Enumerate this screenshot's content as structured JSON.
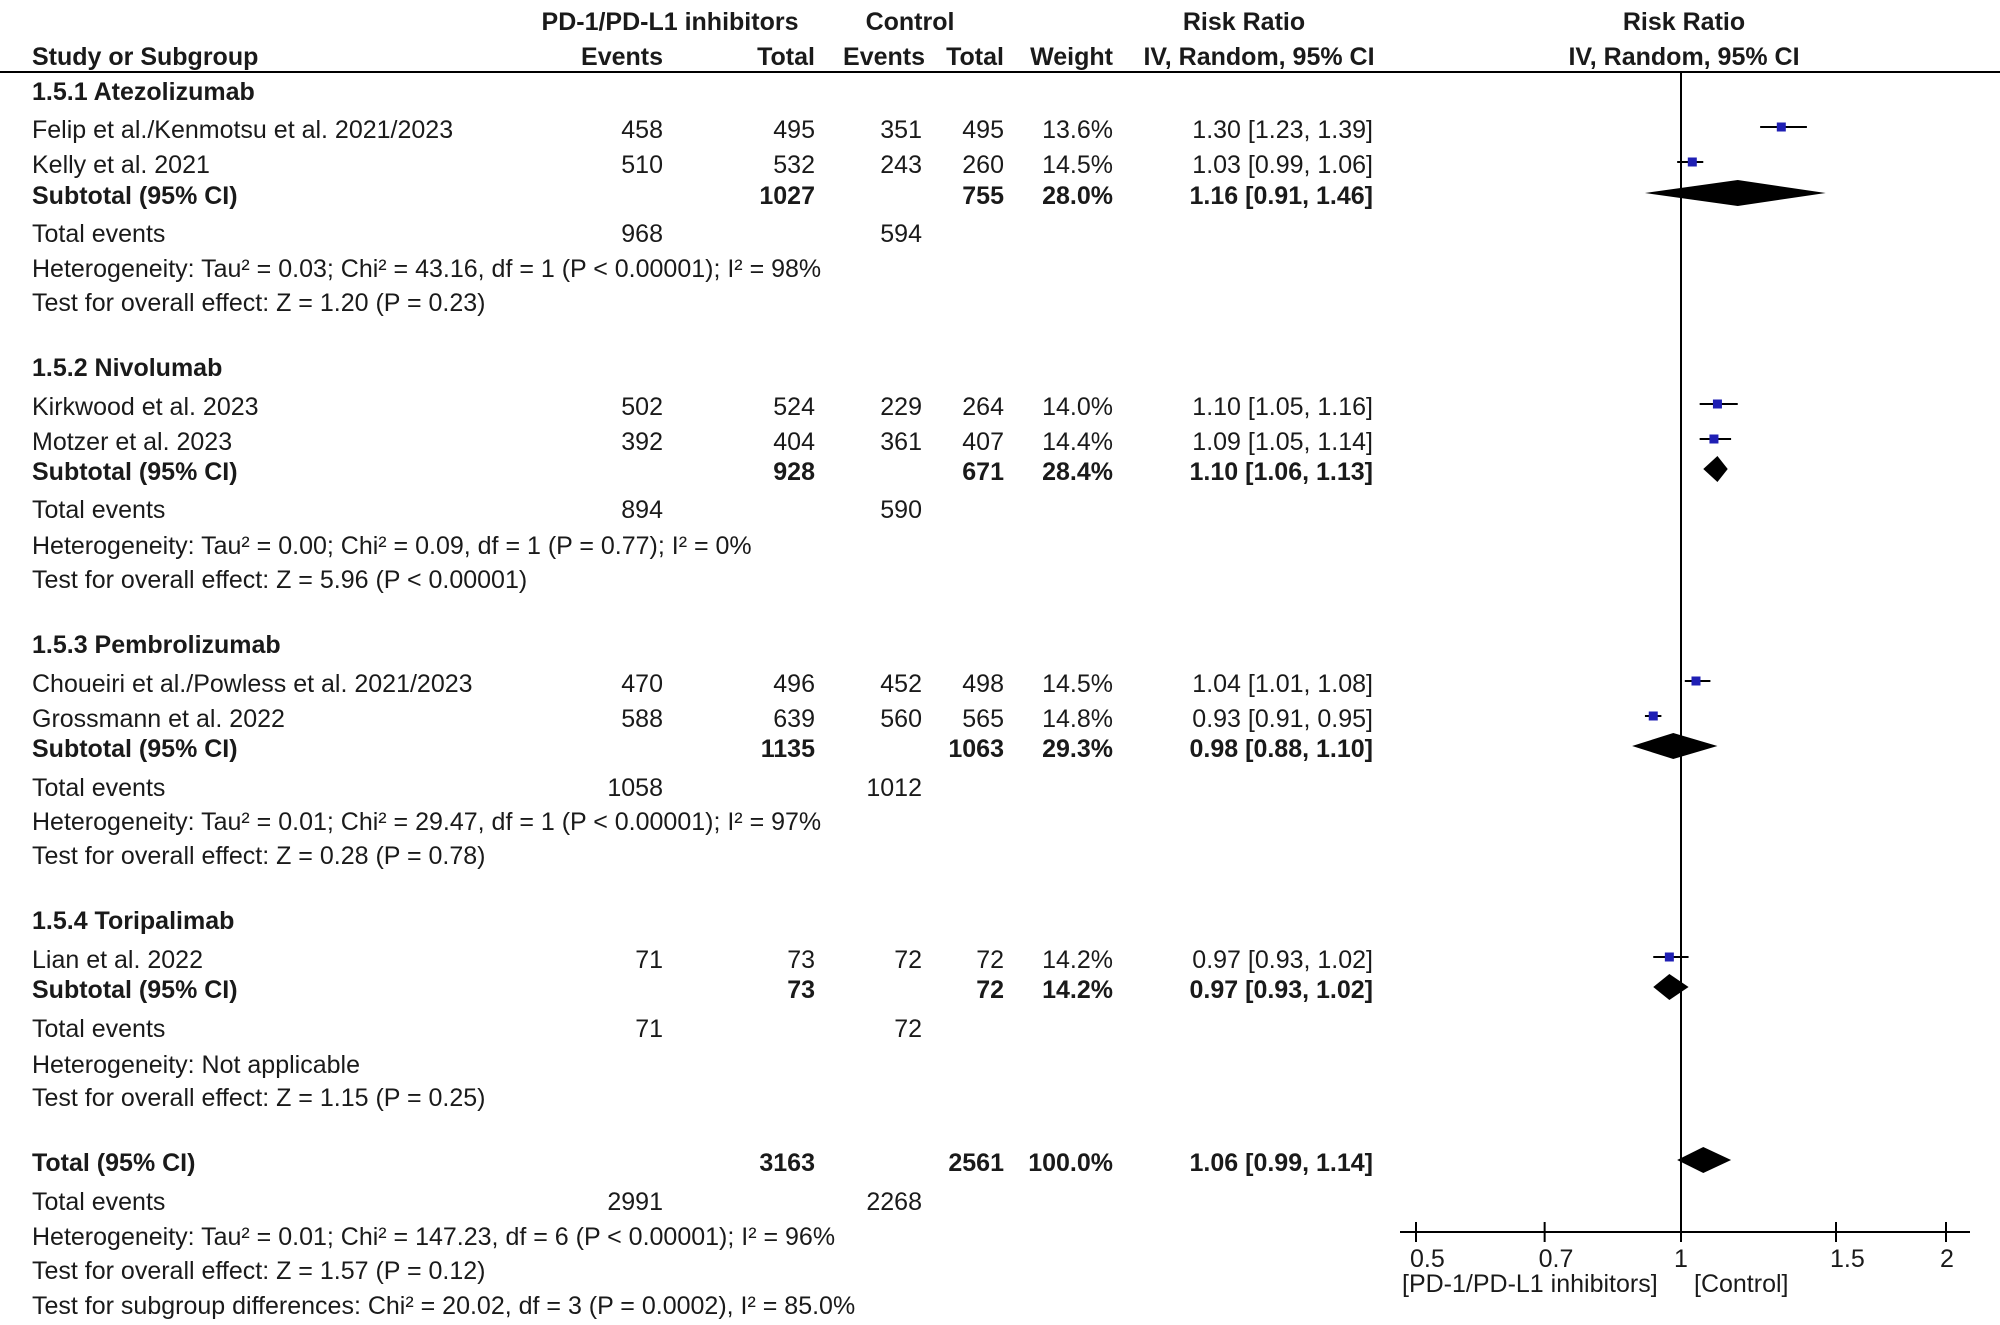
{
  "header": {
    "group_exp": "PD-1/PD-L1 inhibitors",
    "group_ctrl": "Control",
    "rr_title": "Risk Ratio",
    "rr_plot_title": "Risk Ratio",
    "study_col": "Study or Subgroup",
    "events_exp": "Events",
    "total_exp": "Total",
    "events_ctrl": "Events",
    "total_ctrl": "Total",
    "weight": "Weight",
    "rr_method": "IV, Random, 95% CI",
    "rr_plot_method": "IV, Random, 95% CI"
  },
  "subgroups": [
    {
      "title": "1.5.1 Atezolizumab",
      "studies": [
        {
          "name": "Felip et al./Kenmotsu et al. 2021/2023",
          "e_exp": "458",
          "t_exp": "495",
          "e_ctrl": "351",
          "t_ctrl": "495",
          "weight": "13.6%",
          "ci": "1.30 [1.23, 1.39]"
        },
        {
          "name": "Kelly et al. 2021",
          "e_exp": "510",
          "t_exp": "532",
          "e_ctrl": "243",
          "t_ctrl": "260",
          "weight": "14.5%",
          "ci": "1.03 [0.99, 1.06]"
        }
      ],
      "subtotal": {
        "label": "Subtotal (95% CI)",
        "t_exp": "1027",
        "t_ctrl": "755",
        "weight": "28.0%",
        "ci": "1.16 [0.91, 1.46]"
      },
      "total_events": {
        "label": "Total events",
        "exp": "968",
        "ctrl": "594"
      },
      "heterogeneity": "Heterogeneity: Tau² = 0.03; Chi² = 43.16, df = 1 (P < 0.00001); I² = 98%",
      "overall": "Test for overall effect: Z = 1.20 (P = 0.23)"
    },
    {
      "title": "1.5.2 Nivolumab",
      "studies": [
        {
          "name": "Kirkwood et al. 2023",
          "e_exp": "502",
          "t_exp": "524",
          "e_ctrl": "229",
          "t_ctrl": "264",
          "weight": "14.0%",
          "ci": "1.10 [1.05, 1.16]"
        },
        {
          "name": "Motzer et al. 2023",
          "e_exp": "392",
          "t_exp": "404",
          "e_ctrl": "361",
          "t_ctrl": "407",
          "weight": "14.4%",
          "ci": "1.09 [1.05, 1.14]"
        }
      ],
      "subtotal": {
        "label": "Subtotal (95% CI)",
        "t_exp": "928",
        "t_ctrl": "671",
        "weight": "28.4%",
        "ci": "1.10 [1.06, 1.13]"
      },
      "total_events": {
        "label": "Total events",
        "exp": "894",
        "ctrl": "590"
      },
      "heterogeneity": "Heterogeneity: Tau² = 0.00; Chi² = 0.09, df = 1 (P = 0.77); I² = 0%",
      "overall": "Test for overall effect: Z = 5.96 (P < 0.00001)"
    },
    {
      "title": "1.5.3 Pembrolizumab",
      "studies": [
        {
          "name": "Choueiri et al./Powless et al. 2021/2023",
          "e_exp": "470",
          "t_exp": "496",
          "e_ctrl": "452",
          "t_ctrl": "498",
          "weight": "14.5%",
          "ci": "1.04 [1.01, 1.08]"
        },
        {
          "name": "Grossmann et al. 2022",
          "e_exp": "588",
          "t_exp": "639",
          "e_ctrl": "560",
          "t_ctrl": "565",
          "weight": "14.8%",
          "ci": "0.93 [0.91, 0.95]"
        }
      ],
      "subtotal": {
        "label": "Subtotal (95% CI)",
        "t_exp": "1135",
        "t_ctrl": "1063",
        "weight": "29.3%",
        "ci": "0.98 [0.88, 1.10]"
      },
      "total_events": {
        "label": "Total events",
        "exp": "1058",
        "ctrl": "1012"
      },
      "heterogeneity": "Heterogeneity: Tau² = 0.01; Chi² = 29.47, df = 1 (P < 0.00001); I² = 97%",
      "overall": "Test for overall effect: Z = 0.28 (P = 0.78)"
    },
    {
      "title": "1.5.4 Toripalimab",
      "studies": [
        {
          "name": "Lian et al. 2022",
          "e_exp": "71",
          "t_exp": "73",
          "e_ctrl": "72",
          "t_ctrl": "72",
          "weight": "14.2%",
          "ci": "0.97 [0.93, 1.02]"
        }
      ],
      "subtotal": {
        "label": "Subtotal (95% CI)",
        "t_exp": "73",
        "t_ctrl": "72",
        "weight": "14.2%",
        "ci": "0.97 [0.93, 1.02]"
      },
      "total_events": {
        "label": "Total events",
        "exp": "71",
        "ctrl": "72"
      },
      "heterogeneity": "Heterogeneity: Not applicable",
      "overall": "Test for overall effect: Z = 1.15 (P = 0.25)"
    }
  ],
  "overall_total": {
    "label": "Total (95% CI)",
    "t_exp": "3163",
    "t_ctrl": "2561",
    "weight": "100.0%",
    "ci": "1.06 [0.99, 1.14]",
    "total_events": {
      "label": "Total events",
      "exp": "2991",
      "ctrl": "2268"
    },
    "heterogeneity": "Heterogeneity: Tau² = 0.01; Chi² = 147.23, df = 6 (P < 0.00001); I² = 96%",
    "overall": "Test for overall effect: Z = 1.57 (P = 0.12)",
    "subgroup_diff": "Test for subgroup differences: Chi² = 20.02, df = 3 (P = 0.0002), I² = 85.0%"
  },
  "axis": {
    "ticks": [
      0.5,
      0.7,
      1,
      1.5,
      2
    ],
    "tick_labels": [
      "0.5",
      "0.7",
      "1",
      "1.5",
      "2"
    ],
    "favours_left": "[PD-1/PD-L1 inhibitors]",
    "favours_right": "[Control]"
  },
  "colors": {
    "square": "#1f1fb4",
    "diamond": "#000000",
    "line": "#000000",
    "text": "#1a1a1a"
  },
  "chart_data": {
    "type": "forest",
    "scale": "log",
    "xlim": [
      0.5,
      2
    ],
    "null_value": 1,
    "studies": [
      {
        "name": "Felip et al./Kenmotsu et al. 2021/2023",
        "subgroup": "1.5.1 Atezolizumab",
        "rr": 1.3,
        "lo": 1.23,
        "hi": 1.39,
        "weight": 13.6
      },
      {
        "name": "Kelly et al. 2021",
        "subgroup": "1.5.1 Atezolizumab",
        "rr": 1.03,
        "lo": 0.99,
        "hi": 1.06,
        "weight": 14.5
      },
      {
        "name": "Kirkwood et al. 2023",
        "subgroup": "1.5.2 Nivolumab",
        "rr": 1.1,
        "lo": 1.05,
        "hi": 1.16,
        "weight": 14.0
      },
      {
        "name": "Motzer et al. 2023",
        "subgroup": "1.5.2 Nivolumab",
        "rr": 1.09,
        "lo": 1.05,
        "hi": 1.14,
        "weight": 14.4
      },
      {
        "name": "Choueiri et al./Powless et al. 2021/2023",
        "subgroup": "1.5.3 Pembrolizumab",
        "rr": 1.04,
        "lo": 1.01,
        "hi": 1.08,
        "weight": 14.5
      },
      {
        "name": "Grossmann et al. 2022",
        "subgroup": "1.5.3 Pembrolizumab",
        "rr": 0.93,
        "lo": 0.91,
        "hi": 0.95,
        "weight": 14.8
      },
      {
        "name": "Lian et al. 2022",
        "subgroup": "1.5.4 Toripalimab",
        "rr": 0.97,
        "lo": 0.93,
        "hi": 1.02,
        "weight": 14.2
      }
    ],
    "subtotals": [
      {
        "subgroup": "1.5.1 Atezolizumab",
        "rr": 1.16,
        "lo": 0.91,
        "hi": 1.46,
        "weight": 28.0
      },
      {
        "subgroup": "1.5.2 Nivolumab",
        "rr": 1.1,
        "lo": 1.06,
        "hi": 1.13,
        "weight": 28.4
      },
      {
        "subgroup": "1.5.3 Pembrolizumab",
        "rr": 0.98,
        "lo": 0.88,
        "hi": 1.1,
        "weight": 29.3
      },
      {
        "subgroup": "1.5.4 Toripalimab",
        "rr": 0.97,
        "lo": 0.93,
        "hi": 1.02,
        "weight": 14.2
      }
    ],
    "overall": {
      "rr": 1.06,
      "lo": 0.99,
      "hi": 1.14,
      "weight": 100.0
    }
  }
}
